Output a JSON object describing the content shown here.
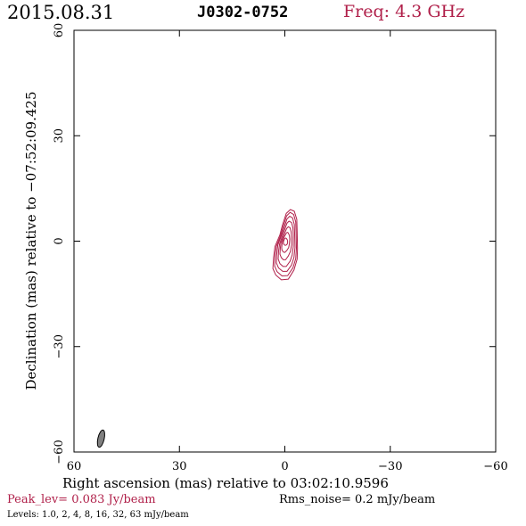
{
  "header": {
    "date": "2015.08.31",
    "source": "J0302-0752",
    "freq": "Freq: 4.3 GHz"
  },
  "footer": {
    "peak": "Peak_lev=  0.083 Jy/beam",
    "rms": "Rms_noise=  0.2 mJy/beam",
    "levels": "Levels: 1.0,   2,   4,   8,  16,  32,  63 mJy/beam"
  },
  "colors": {
    "contour": "#b0204a",
    "header_freq": "#b0204a",
    "footer_peak": "#b0204a",
    "beam_fill": "#808080",
    "frame": "#000000"
  },
  "chart_data": {
    "type": "contour",
    "xlabel": "Right ascension (mas) relative to 03:02:10.9596",
    "ylabel": "Declination (mas) relative to −07:52:09.425",
    "xlim": [
      60,
      -60
    ],
    "ylim": [
      -60,
      60
    ],
    "x_ticks": [
      60,
      30,
      0,
      -30,
      -60
    ],
    "x_tick_labels": [
      "60",
      "30",
      "0",
      "−30",
      "−60"
    ],
    "y_ticks": [
      -60,
      -30,
      0,
      30,
      60
    ],
    "y_tick_labels": [
      "−60",
      "−30",
      "0",
      "30",
      "60"
    ],
    "levels_mjy": [
      1.0,
      2,
      4,
      8,
      16,
      32,
      63
    ],
    "peak_jy_per_beam": 0.083,
    "rms_mjy_per_beam": 0.2,
    "contours": [
      {
        "level": 1.0,
        "points": [
          [
            -2.7,
            8.5
          ],
          [
            -3.4,
            6.2
          ],
          [
            -3.5,
            2.8
          ],
          [
            -3.6,
            -2.1
          ],
          [
            -3.5,
            -5.1
          ],
          [
            -2.6,
            -8.2
          ],
          [
            -1.0,
            -10.8
          ],
          [
            1.0,
            -11.0
          ],
          [
            2.6,
            -9.6
          ],
          [
            3.4,
            -7.8
          ],
          [
            3.2,
            -4.6
          ],
          [
            2.8,
            -1.5
          ],
          [
            1.4,
            1.8
          ],
          [
            0.7,
            4.5
          ],
          [
            -0.4,
            7.9
          ],
          [
            -1.6,
            9.0
          ]
        ]
      },
      {
        "level": 2,
        "points": [
          [
            -2.5,
            7.6
          ],
          [
            -3.1,
            5.5
          ],
          [
            -3.2,
            2.4
          ],
          [
            -3.3,
            -2.0
          ],
          [
            -3.1,
            -5.0
          ],
          [
            -2.3,
            -7.6
          ],
          [
            -0.8,
            -9.8
          ],
          [
            0.8,
            -9.9
          ],
          [
            2.2,
            -8.7
          ],
          [
            2.9,
            -7.1
          ],
          [
            2.8,
            -4.3
          ],
          [
            2.4,
            -1.4
          ],
          [
            1.2,
            1.6
          ],
          [
            0.5,
            4.1
          ],
          [
            -0.5,
            7.2
          ],
          [
            -1.5,
            8.2
          ]
        ]
      },
      {
        "level": 4,
        "points": [
          [
            -2.2,
            6.6
          ],
          [
            -2.7,
            4.7
          ],
          [
            -2.8,
            2.0
          ],
          [
            -2.9,
            -1.8
          ],
          [
            -2.6,
            -4.6
          ],
          [
            -1.9,
            -6.8
          ],
          [
            -0.6,
            -8.6
          ],
          [
            0.6,
            -8.6
          ],
          [
            1.8,
            -7.6
          ],
          [
            2.4,
            -6.2
          ],
          [
            2.3,
            -3.7
          ],
          [
            2.0,
            -1.1
          ],
          [
            1.0,
            1.5
          ],
          [
            0.3,
            3.6
          ],
          [
            -0.6,
            6.3
          ],
          [
            -1.4,
            7.1
          ]
        ]
      },
      {
        "level": 8,
        "points": [
          [
            -1.9,
            5.3
          ],
          [
            -2.3,
            3.8
          ],
          [
            -2.4,
            1.6
          ],
          [
            -2.4,
            -1.5
          ],
          [
            -2.1,
            -3.9
          ],
          [
            -1.5,
            -5.7
          ],
          [
            -0.4,
            -7.2
          ],
          [
            0.5,
            -7.2
          ],
          [
            1.4,
            -6.4
          ],
          [
            1.9,
            -5.1
          ],
          [
            1.8,
            -3.0
          ],
          [
            1.5,
            -0.8
          ],
          [
            0.8,
            1.2
          ],
          [
            0.2,
            2.9
          ],
          [
            -0.6,
            5.1
          ],
          [
            -1.2,
            5.7
          ]
        ]
      },
      {
        "level": 16,
        "points": [
          [
            -1.5,
            3.8
          ],
          [
            -1.8,
            2.6
          ],
          [
            -1.9,
            1.1
          ],
          [
            -1.9,
            -1.1
          ],
          [
            -1.6,
            -2.9
          ],
          [
            -1.0,
            -4.2
          ],
          [
            -0.2,
            -5.3
          ],
          [
            0.4,
            -5.3
          ],
          [
            1.0,
            -4.7
          ],
          [
            1.4,
            -3.7
          ],
          [
            1.3,
            -2.1
          ],
          [
            1.1,
            -0.5
          ],
          [
            0.6,
            0.9
          ],
          [
            0.1,
            2.1
          ],
          [
            -0.5,
            3.6
          ],
          [
            -1.0,
            4.1
          ]
        ]
      },
      {
        "level": 32,
        "points": [
          [
            -1.0,
            2.3
          ],
          [
            -1.3,
            1.6
          ],
          [
            -1.4,
            0.6
          ],
          [
            -1.3,
            -0.7
          ],
          [
            -1.1,
            -1.8
          ],
          [
            -0.6,
            -2.6
          ],
          [
            0.0,
            -3.2
          ],
          [
            0.4,
            -3.1
          ],
          [
            0.8,
            -2.6
          ],
          [
            0.9,
            -1.9
          ],
          [
            0.8,
            -0.9
          ],
          [
            0.6,
            0.1
          ],
          [
            0.3,
            1.0
          ],
          [
            -0.1,
            1.7
          ],
          [
            -0.5,
            2.4
          ],
          [
            -0.8,
            2.5
          ]
        ]
      },
      {
        "level": 63,
        "points": [
          [
            -0.4,
            0.8
          ],
          [
            -0.7,
            0.4
          ],
          [
            -0.8,
            -0.2
          ],
          [
            -0.7,
            -0.8
          ],
          [
            -0.4,
            -1.1
          ],
          [
            -0.1,
            -1.2
          ],
          [
            0.2,
            -1.0
          ],
          [
            0.4,
            -0.6
          ],
          [
            0.4,
            -0.1
          ],
          [
            0.2,
            0.4
          ],
          [
            0.0,
            0.8
          ],
          [
            -0.2,
            0.9
          ]
        ]
      }
    ],
    "beam": {
      "center": [
        52.3,
        -56.2
      ],
      "major_mas": 5.0,
      "minor_mas": 1.8,
      "pa_deg": 13
    }
  }
}
